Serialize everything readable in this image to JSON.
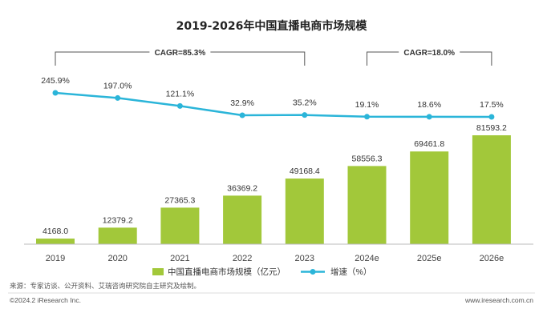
{
  "chart_data": {
    "type": "bar",
    "title": "2019-2026年中国直播电商市场规模",
    "categories": [
      "2019",
      "2020",
      "2021",
      "2022",
      "2023",
      "2024e",
      "2025e",
      "2026e"
    ],
    "series": [
      {
        "name": "中国直播电商市场规模（亿元）",
        "type": "bar",
        "values": [
          4168.0,
          12379.2,
          27365.3,
          36369.2,
          49168.4,
          58556.3,
          69461.8,
          81593.2
        ],
        "labels": [
          "4168.0",
          "12379.2",
          "27365.3",
          "36369.2",
          "49168.4",
          "58556.3",
          "69461.8",
          "81593.2"
        ]
      },
      {
        "name": "增速（%）",
        "type": "line",
        "values": [
          245.9,
          197.0,
          121.1,
          32.9,
          35.2,
          19.1,
          18.6,
          17.5
        ],
        "labels": [
          "245.9%",
          "197.0%",
          "121.1%",
          "32.9%",
          "35.2%",
          "19.1%",
          "18.6%",
          "17.5%"
        ]
      }
    ],
    "annotations": [
      {
        "text": "CAGR=85.3%",
        "from": "2019",
        "to": "2023"
      },
      {
        "text": "CAGR=18.0%",
        "from": "2024e",
        "to": "2026e"
      }
    ],
    "legend": "bottom-center",
    "grid": false
  },
  "colors": {
    "bar": "#a2c83a",
    "line": "#2bb5d9",
    "axis": "#bbbbbb",
    "bracket": "#555555"
  },
  "footer": {
    "source": "来源：专家访谈、公开资料、艾瑞咨询研究院自主研究及绘制。",
    "copyright": "©2024.2 iResearch Inc.",
    "website": "www.iresearch.com.cn"
  }
}
